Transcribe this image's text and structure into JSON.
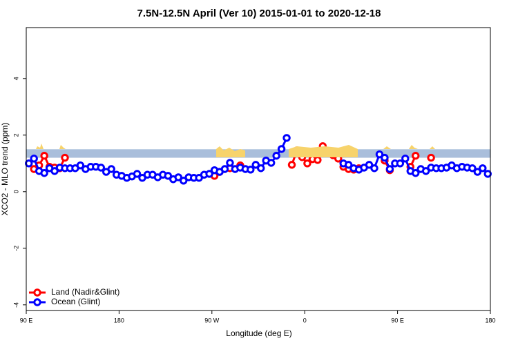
{
  "chart_data": {
    "type": "line",
    "title": "7.5N-12.5N April (Ver 10)   2015-01-01 to 2020-12-18",
    "xlabel": "Longitude (deg E)",
    "ylabel": "XCO2 - MLO trend (ppm)",
    "xlim": [
      90,
      540
    ],
    "ylim": [
      -4.2,
      5.8
    ],
    "xticks": [
      {
        "value": 90,
        "label": "90 E"
      },
      180,
      {
        "value": 270,
        "label": "90 W"
      },
      {
        "value": 360,
        "label": "0"
      },
      {
        "value": 450,
        "label": "90 E"
      },
      {
        "value": 540,
        "label": "180"
      }
    ],
    "yticks": [
      -4,
      -2,
      0,
      2,
      4
    ],
    "reference_band": [
      1.2,
      1.5
    ],
    "reference_band_color": "#a9bedb",
    "legend": "bottom-left",
    "x": [
      92.5,
      97.5,
      102.5,
      107.5,
      112.5,
      117.5,
      122.5,
      127.5,
      132.5,
      137.5,
      142.5,
      147.5,
      152.5,
      157.5,
      162.5,
      167.5,
      172.5,
      177.5,
      182.5,
      187.5,
      192.5,
      197.5,
      202.5,
      207.5,
      212.5,
      217.5,
      222.5,
      227.5,
      232.5,
      237.5,
      242.5,
      247.5,
      252.5,
      257.5,
      262.5,
      267.5,
      272.5,
      277.5,
      282.5,
      287.5,
      292.5,
      297.5,
      302.5,
      307.5,
      312.5,
      317.5,
      322.5,
      327.5,
      332.5,
      337.5,
      342.5,
      347.5,
      352.5,
      357.5,
      362.5,
      367.5,
      372.5,
      377.5,
      382.5,
      387.5,
      392.5,
      397.5,
      402.5,
      407.5,
      412.5,
      417.5,
      422.5,
      427.5,
      432.5,
      437.5,
      442.5,
      447.5,
      452.5,
      457.5,
      462.5,
      467.5,
      472.5,
      477.5,
      482.5,
      487.5,
      492.5,
      497.5,
      502.5,
      507.5,
      512.5,
      517.5,
      522.5,
      527.5,
      532.5,
      537.5
    ],
    "series": [
      {
        "name": "Land (Nadir&Glint)",
        "color": "#ff0000",
        "values": [
          null,
          0.8,
          0.93,
          1.27,
          0.88,
          0.85,
          0.83,
          1.2,
          null,
          null,
          null,
          null,
          null,
          null,
          null,
          null,
          null,
          null,
          null,
          null,
          null,
          null,
          null,
          null,
          null,
          null,
          null,
          null,
          null,
          null,
          null,
          null,
          null,
          null,
          null,
          null,
          0.56,
          0.7,
          null,
          0.83,
          null,
          0.93,
          null,
          null,
          null,
          null,
          null,
          null,
          null,
          null,
          null,
          0.95,
          1.46,
          1.22,
          1.0,
          1.15,
          1.12,
          1.61,
          1.41,
          1.29,
          1.17,
          0.88,
          0.8,
          0.78,
          0.83,
          null,
          null,
          null,
          null,
          1.1,
          0.76,
          null,
          null,
          null,
          0.88,
          1.27,
          null,
          null,
          1.2,
          null,
          null,
          null,
          null,
          null,
          null,
          null,
          null,
          null,
          null,
          null
        ]
      },
      {
        "name": "Ocean (Glint)",
        "color": "#0000ff",
        "values": [
          1.0,
          1.17,
          0.73,
          0.66,
          0.83,
          0.73,
          0.85,
          0.83,
          0.83,
          0.83,
          0.93,
          0.8,
          0.88,
          0.88,
          0.85,
          0.7,
          0.8,
          0.6,
          0.56,
          0.49,
          0.54,
          0.63,
          0.49,
          0.6,
          0.6,
          0.51,
          0.6,
          0.56,
          0.44,
          0.51,
          0.39,
          0.51,
          0.49,
          0.49,
          0.6,
          0.63,
          0.76,
          0.7,
          0.8,
          1.02,
          0.8,
          0.85,
          0.8,
          0.78,
          0.95,
          0.83,
          1.1,
          1.02,
          1.27,
          1.51,
          1.9,
          null,
          null,
          null,
          null,
          null,
          null,
          null,
          null,
          null,
          null,
          1.0,
          0.95,
          0.83,
          0.78,
          0.85,
          0.95,
          0.83,
          1.32,
          1.2,
          0.8,
          1.0,
          1.0,
          1.17,
          0.73,
          0.66,
          0.8,
          0.73,
          0.85,
          0.83,
          0.83,
          0.85,
          0.93,
          0.83,
          0.88,
          0.85,
          0.83,
          0.7,
          0.83,
          0.63
        ]
      }
    ]
  }
}
